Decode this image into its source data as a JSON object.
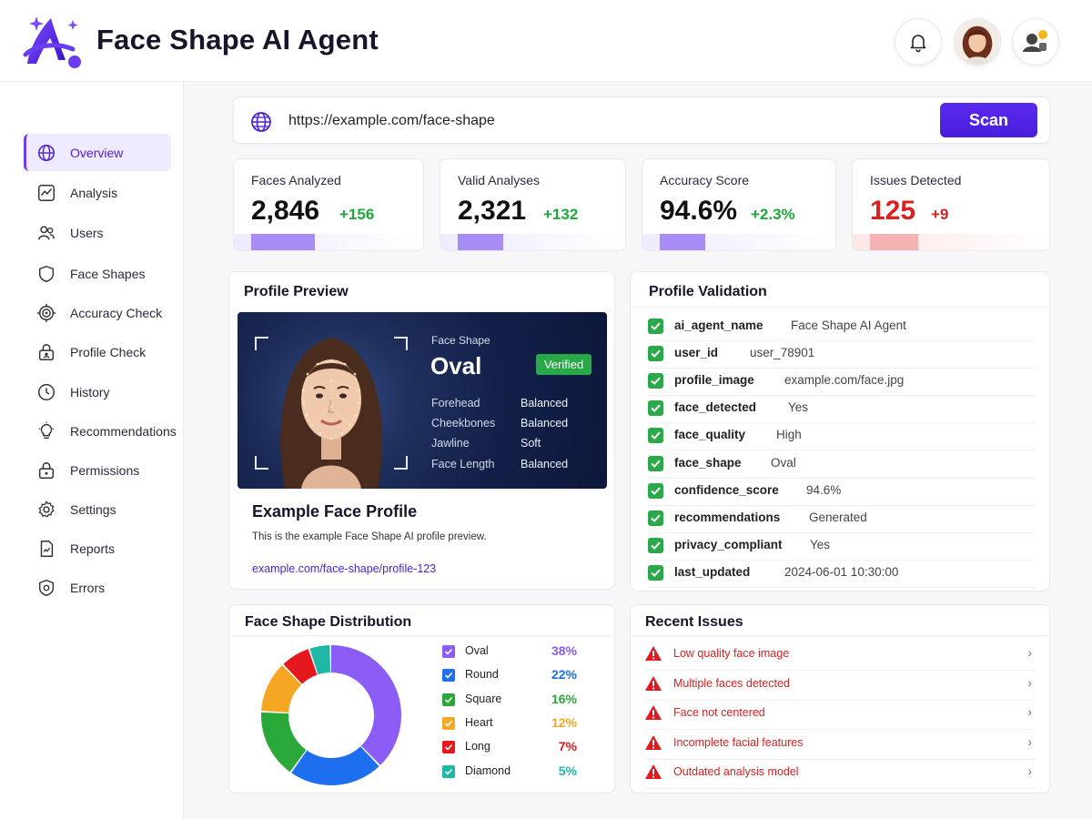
{
  "app": {
    "title": "Face Shape AI Agent"
  },
  "header": {
    "notifications_icon": "bell-icon",
    "avatar_icon": "user-avatar",
    "agent_icon": "agent-status-icon"
  },
  "sidebar": {
    "items": [
      {
        "label": "Overview",
        "icon": "globe-icon",
        "active": true
      },
      {
        "label": "Analysis",
        "icon": "chart-line-icon"
      },
      {
        "label": "Users",
        "icon": "users-icon"
      },
      {
        "label": "Face Shapes",
        "icon": "shield-outline-icon"
      },
      {
        "label": "Accuracy Check",
        "icon": "target-icon"
      },
      {
        "label": "Profile Check",
        "icon": "lock-user-icon"
      },
      {
        "label": "History",
        "icon": "clock-icon"
      },
      {
        "label": "Recommendations",
        "icon": "lightbulb-icon"
      },
      {
        "label": "Permissions",
        "icon": "lock-icon"
      },
      {
        "label": "Settings",
        "icon": "gear-icon"
      },
      {
        "label": "Reports",
        "icon": "report-icon"
      },
      {
        "label": "Errors",
        "icon": "shield-alert-icon"
      }
    ]
  },
  "urlbar": {
    "value": "https://example.com/face-shape",
    "scan_label": "Scan"
  },
  "stats": [
    {
      "label": "Faces Analyzed",
      "value": "2,846",
      "delta": "+156",
      "status": "positive",
      "bar_fill": 0.37
    },
    {
      "label": "Valid Analyses",
      "value": "2,321",
      "delta": "+132",
      "status": "positive",
      "bar_fill": 0.27
    },
    {
      "label": "Accuracy Score",
      "value": "94.6%",
      "delta": "+2.3%",
      "status": "positive",
      "bar_fill": 0.26
    },
    {
      "label": "Issues Detected",
      "value": "125",
      "delta": "+9",
      "status": "negative",
      "bar_fill": 0.27
    }
  ],
  "profile_preview": {
    "title": "Profile Preview",
    "face_shape_label": "Face Shape",
    "face_shape": "Oval",
    "badge": "Verified",
    "attributes": [
      {
        "name": "Forehead",
        "value": "Balanced"
      },
      {
        "name": "Cheekbones",
        "value": "Balanced"
      },
      {
        "name": "Jawline",
        "value": "Soft"
      },
      {
        "name": "Face Length",
        "value": "Balanced"
      }
    ],
    "name": "Example Face Profile",
    "description": "This is the example Face Shape AI profile preview.",
    "link": "example.com/face-shape/profile-123"
  },
  "validation": {
    "title": "Profile Validation",
    "rows": [
      {
        "key": "ai_agent_name",
        "value": "Face Shape AI Agent"
      },
      {
        "key": "user_id",
        "value": "user_78901"
      },
      {
        "key": "profile_image",
        "value": "example.com/face.jpg"
      },
      {
        "key": "face_detected",
        "value": "Yes"
      },
      {
        "key": "face_quality",
        "value": "High"
      },
      {
        "key": "face_shape",
        "value": "Oval"
      },
      {
        "key": "confidence_score",
        "value": "94.6%"
      },
      {
        "key": "recommendations",
        "value": "Generated"
      },
      {
        "key": "privacy_compliant",
        "value": "Yes"
      },
      {
        "key": "last_updated",
        "value": "2024-06-01 10:30:00"
      }
    ]
  },
  "distribution": {
    "title": "Face Shape Distribution",
    "legend": [
      {
        "name": "Oval",
        "pct": "38%",
        "color": "#8b5cf6"
      },
      {
        "name": "Round",
        "pct": "22%",
        "color": "#1e6ff0"
      },
      {
        "name": "Square",
        "pct": "16%",
        "color": "#2aa83a"
      },
      {
        "name": "Heart",
        "pct": "12%",
        "color": "#f5a623"
      },
      {
        "name": "Long",
        "pct": "7%",
        "color": "#e5171f"
      },
      {
        "name": "Diamond",
        "pct": "5%",
        "color": "#1fb8a6"
      }
    ]
  },
  "chart_data": {
    "type": "pie",
    "title": "Face Shape Distribution",
    "categories": [
      "Oval",
      "Round",
      "Square",
      "Heart",
      "Long",
      "Diamond"
    ],
    "values": [
      38,
      22,
      16,
      12,
      7,
      5
    ],
    "colors": [
      "#8b5cf6",
      "#1e6ff0",
      "#2aa83a",
      "#f5a623",
      "#e5171f",
      "#1fb8a6"
    ],
    "legend": "right",
    "donut": true
  },
  "issues": {
    "title": "Recent Issues",
    "items": [
      "Low quality face image",
      "Multiple faces detected",
      "Face not centered",
      "Incomplete facial features",
      "Outdated analysis model"
    ]
  }
}
